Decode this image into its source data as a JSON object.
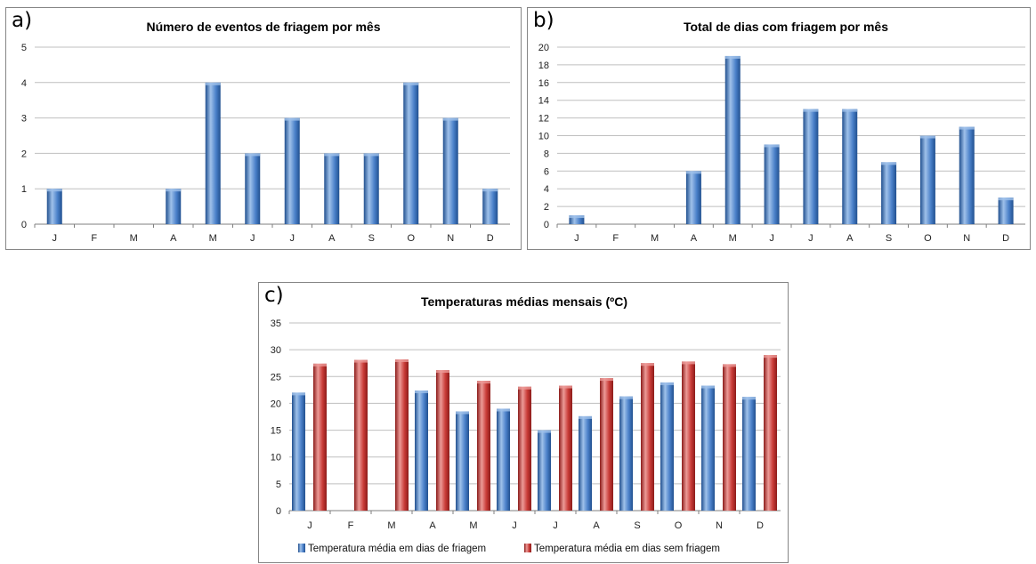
{
  "panel_labels": {
    "a": "a)",
    "b": "b)",
    "c": "c)"
  },
  "colors": {
    "blue_dark": "#21508f",
    "blue_mid": "#4a80c9",
    "blue_light": "#9fc1ea",
    "red_dark": "#8c1c1a",
    "red_mid": "#c83a36",
    "red_light": "#ec9a97",
    "grid": "#bfbfbf",
    "axis": "#7f7f7f"
  },
  "chart_data": [
    {
      "type": "bar",
      "title": "Número de eventos de friagem por mês",
      "categories": [
        "J",
        "F",
        "M",
        "A",
        "M",
        "J",
        "J",
        "A",
        "S",
        "O",
        "N",
        "D"
      ],
      "values": [
        1,
        0,
        0,
        1,
        4,
        2,
        3,
        2,
        2,
        4,
        3,
        1
      ],
      "ylim": [
        0,
        5
      ],
      "yticks": [
        "0",
        "1",
        "2",
        "3",
        "4",
        "5"
      ],
      "xlabel": "",
      "ylabel": "",
      "grid": true
    },
    {
      "type": "bar",
      "title": "Total de dias com friagem por mês",
      "categories": [
        "J",
        "F",
        "M",
        "A",
        "M",
        "J",
        "J",
        "A",
        "S",
        "O",
        "N",
        "D"
      ],
      "values": [
        1,
        0,
        0,
        6,
        19,
        9,
        13,
        13,
        7,
        10,
        11,
        3
      ],
      "ylim": [
        0,
        20
      ],
      "yticks": [
        "0",
        "2",
        "4",
        "6",
        "8",
        "10",
        "12",
        "14",
        "16",
        "18",
        "20"
      ],
      "xlabel": "",
      "ylabel": "",
      "grid": true
    },
    {
      "type": "bar",
      "title": "Temperaturas médias mensais (ºC)",
      "categories": [
        "J",
        "F",
        "M",
        "A",
        "M",
        "J",
        "J",
        "A",
        "S",
        "O",
        "N",
        "D"
      ],
      "series": [
        {
          "name": "Temperatura média em dias de friagem",
          "values": [
            22,
            null,
            null,
            22.4,
            18.5,
            19,
            15,
            17.6,
            21.3,
            23.9,
            23.3,
            21.2
          ]
        },
        {
          "name": "Temperatura média em dias sem friagem",
          "values": [
            27.4,
            28.1,
            28.2,
            26.2,
            24.2,
            23.1,
            23.3,
            24.7,
            27.5,
            27.8,
            27.3,
            29
          ]
        }
      ],
      "ylim": [
        0,
        35
      ],
      "yticks": [
        "0",
        "5",
        "10",
        "15",
        "20",
        "25",
        "30",
        "35"
      ],
      "xlabel": "",
      "ylabel": "",
      "grid": true,
      "legend": "bottom"
    }
  ]
}
